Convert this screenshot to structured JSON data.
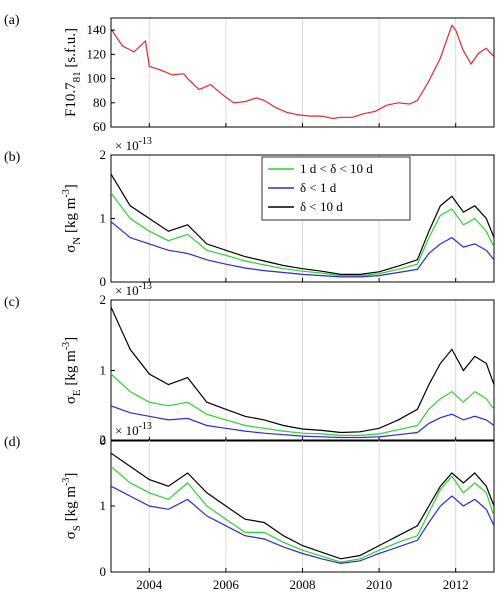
{
  "chart_data": [
    {
      "type": "line",
      "panel_label": "(a)",
      "ylabel_main": "F10.7",
      "ylabel_sub": "81",
      "ylabel_unit": " [s.f.u.]",
      "ylim": [
        60,
        150
      ],
      "yticks": [
        60,
        80,
        100,
        120,
        140
      ],
      "xlim": [
        2003.0,
        2013.0
      ],
      "series": [
        {
          "color": "#e8262b",
          "x": [
            2003.0,
            2003.3,
            2003.6,
            2003.9,
            2004.0,
            2004.3,
            2004.6,
            2004.9,
            2005.0,
            2005.3,
            2005.6,
            2005.9,
            2006.2,
            2006.5,
            2006.8,
            2007.0,
            2007.3,
            2007.6,
            2007.9,
            2008.2,
            2008.5,
            2008.8,
            2009.0,
            2009.3,
            2009.6,
            2009.9,
            2010.2,
            2010.5,
            2010.8,
            2011.0,
            2011.3,
            2011.6,
            2011.9,
            2012.0,
            2012.2,
            2012.4,
            2012.6,
            2012.8,
            2013.0
          ],
          "y": [
            141,
            127,
            122,
            131,
            110,
            107,
            103,
            104,
            100,
            91,
            95,
            87,
            80,
            81,
            84,
            82,
            76,
            72,
            70,
            69,
            69,
            67,
            68,
            68,
            71,
            73,
            78,
            80,
            79,
            82,
            98,
            117,
            144,
            140,
            123,
            112,
            121,
            125,
            118
          ]
        }
      ]
    },
    {
      "type": "line",
      "panel_label": "(b)",
      "ylabel_main": "σ",
      "ylabel_sub": "N",
      "ylabel_unit": " [kg m",
      "ylabel_sup": "-3",
      "ylabel_end": "]",
      "exponent": "× 10",
      "exponent_sup": "-13",
      "ylim": [
        0,
        2
      ],
      "yticks": [
        0,
        1,
        2
      ],
      "xlim": [
        2003.0,
        2013.0
      ],
      "legend": {
        "position": "top-right",
        "entries": [
          {
            "label": "1 d < δ < 10 d",
            "color": "#2ed12e"
          },
          {
            "label": "δ < 1 d",
            "color": "#2b2bd6"
          },
          {
            "label": "δ < 10 d",
            "color": "#000000"
          }
        ]
      },
      "series": [
        {
          "color": "#000000",
          "x": [
            2003.0,
            2003.5,
            2004.0,
            2004.5,
            2005.0,
            2005.5,
            2006.0,
            2006.5,
            2007.0,
            2007.5,
            2008.0,
            2008.5,
            2009.0,
            2009.5,
            2010.0,
            2010.5,
            2011.0,
            2011.3,
            2011.6,
            2011.9,
            2012.2,
            2012.5,
            2012.8,
            2013.0
          ],
          "y": [
            1.7,
            1.2,
            1.0,
            0.8,
            0.9,
            0.6,
            0.5,
            0.4,
            0.33,
            0.26,
            0.21,
            0.17,
            0.12,
            0.12,
            0.16,
            0.25,
            0.35,
            0.8,
            1.2,
            1.35,
            1.1,
            1.2,
            1.0,
            0.7
          ]
        },
        {
          "color": "#2ed12e",
          "x": [
            2003.0,
            2003.5,
            2004.0,
            2004.5,
            2005.0,
            2005.5,
            2006.0,
            2006.5,
            2007.0,
            2007.5,
            2008.0,
            2008.5,
            2009.0,
            2009.5,
            2010.0,
            2010.5,
            2011.0,
            2011.3,
            2011.6,
            2011.9,
            2012.2,
            2012.5,
            2012.8,
            2013.0
          ],
          "y": [
            1.4,
            1.0,
            0.8,
            0.65,
            0.75,
            0.5,
            0.42,
            0.33,
            0.27,
            0.21,
            0.17,
            0.14,
            0.1,
            0.1,
            0.13,
            0.2,
            0.28,
            0.7,
            1.05,
            1.15,
            0.9,
            1.0,
            0.8,
            0.55
          ]
        },
        {
          "color": "#2b2bd6",
          "x": [
            2003.0,
            2003.5,
            2004.0,
            2004.5,
            2005.0,
            2005.5,
            2006.0,
            2006.5,
            2007.0,
            2007.5,
            2008.0,
            2008.5,
            2009.0,
            2009.5,
            2010.0,
            2010.5,
            2011.0,
            2011.3,
            2011.6,
            2011.9,
            2012.2,
            2012.5,
            2012.8,
            2013.0
          ],
          "y": [
            0.95,
            0.7,
            0.6,
            0.5,
            0.45,
            0.35,
            0.28,
            0.22,
            0.18,
            0.15,
            0.12,
            0.1,
            0.08,
            0.08,
            0.1,
            0.15,
            0.2,
            0.45,
            0.6,
            0.7,
            0.55,
            0.6,
            0.5,
            0.35
          ]
        }
      ]
    },
    {
      "type": "line",
      "panel_label": "(c)",
      "ylabel_main": "σ",
      "ylabel_sub": "E",
      "ylabel_unit": " [kg m",
      "ylabel_sup": "-3",
      "ylabel_end": "]",
      "exponent": "× 10",
      "exponent_sup": "-13",
      "ylim": [
        0,
        2
      ],
      "yticks": [
        0,
        1,
        2
      ],
      "xlim": [
        2003.0,
        2013.0
      ],
      "series": [
        {
          "color": "#000000",
          "x": [
            2003.0,
            2003.5,
            2004.0,
            2004.5,
            2005.0,
            2005.5,
            2006.0,
            2006.5,
            2007.0,
            2007.5,
            2008.0,
            2008.5,
            2009.0,
            2009.5,
            2010.0,
            2010.5,
            2011.0,
            2011.3,
            2011.6,
            2011.9,
            2012.2,
            2012.5,
            2012.8,
            2013.0
          ],
          "y": [
            1.9,
            1.3,
            0.95,
            0.8,
            0.9,
            0.55,
            0.45,
            0.35,
            0.3,
            0.22,
            0.17,
            0.15,
            0.12,
            0.13,
            0.18,
            0.3,
            0.45,
            0.8,
            1.1,
            1.3,
            1.0,
            1.2,
            1.1,
            0.8
          ]
        },
        {
          "color": "#2ed12e",
          "x": [
            2003.0,
            2003.5,
            2004.0,
            2004.5,
            2005.0,
            2005.5,
            2006.0,
            2006.5,
            2007.0,
            2007.5,
            2008.0,
            2008.5,
            2009.0,
            2009.5,
            2010.0,
            2010.5,
            2011.0,
            2011.3,
            2011.6,
            2011.9,
            2012.2,
            2012.5,
            2012.8,
            2013.0
          ],
          "y": [
            0.95,
            0.7,
            0.55,
            0.5,
            0.55,
            0.38,
            0.3,
            0.22,
            0.18,
            0.14,
            0.11,
            0.1,
            0.08,
            0.08,
            0.1,
            0.16,
            0.22,
            0.45,
            0.6,
            0.7,
            0.55,
            0.7,
            0.6,
            0.45
          ]
        },
        {
          "color": "#2b2bd6",
          "x": [
            2003.0,
            2003.5,
            2004.0,
            2004.5,
            2005.0,
            2005.5,
            2006.0,
            2006.5,
            2007.0,
            2007.5,
            2008.0,
            2008.5,
            2009.0,
            2009.5,
            2010.0,
            2010.5,
            2011.0,
            2011.3,
            2011.6,
            2011.9,
            2012.2,
            2012.5,
            2012.8,
            2013.0
          ],
          "y": [
            0.5,
            0.4,
            0.35,
            0.3,
            0.32,
            0.22,
            0.18,
            0.14,
            0.11,
            0.09,
            0.07,
            0.06,
            0.05,
            0.05,
            0.06,
            0.09,
            0.12,
            0.25,
            0.33,
            0.38,
            0.3,
            0.35,
            0.3,
            0.22
          ]
        }
      ]
    },
    {
      "type": "line",
      "panel_label": "(d)",
      "ylabel_main": "σ",
      "ylabel_sub": "S",
      "ylabel_unit": " [kg m",
      "ylabel_sup": "-3",
      "ylabel_end": "]",
      "exponent": "× 10",
      "exponent_sup": "-13",
      "ylim": [
        0,
        2
      ],
      "yticks": [
        0,
        1,
        2
      ],
      "xlim": [
        2003.0,
        2013.0
      ],
      "xticks": [
        2004,
        2006,
        2008,
        2010,
        2012
      ],
      "series": [
        {
          "color": "#000000",
          "x": [
            2003.0,
            2003.5,
            2004.0,
            2004.5,
            2005.0,
            2005.5,
            2006.0,
            2006.5,
            2007.0,
            2007.5,
            2008.0,
            2008.5,
            2009.0,
            2009.5,
            2010.0,
            2010.5,
            2011.0,
            2011.3,
            2011.6,
            2011.9,
            2012.2,
            2012.5,
            2012.8,
            2013.0
          ],
          "y": [
            1.8,
            1.6,
            1.4,
            1.3,
            1.5,
            1.2,
            1.0,
            0.8,
            0.75,
            0.55,
            0.4,
            0.3,
            0.2,
            0.25,
            0.4,
            0.55,
            0.7,
            1.0,
            1.3,
            1.5,
            1.35,
            1.5,
            1.3,
            1.0
          ]
        },
        {
          "color": "#2ed12e",
          "x": [
            2003.0,
            2003.5,
            2004.0,
            2004.5,
            2005.0,
            2005.5,
            2006.0,
            2006.5,
            2007.0,
            2007.5,
            2008.0,
            2008.5,
            2009.0,
            2009.5,
            2010.0,
            2010.5,
            2011.0,
            2011.3,
            2011.6,
            2011.9,
            2012.2,
            2012.5,
            2012.8,
            2013.0
          ],
          "y": [
            1.6,
            1.35,
            1.2,
            1.1,
            1.35,
            1.0,
            0.8,
            0.6,
            0.6,
            0.45,
            0.33,
            0.24,
            0.15,
            0.2,
            0.33,
            0.45,
            0.55,
            0.9,
            1.25,
            1.45,
            1.2,
            1.35,
            1.2,
            0.85
          ]
        },
        {
          "color": "#2b2bd6",
          "x": [
            2003.0,
            2003.5,
            2004.0,
            2004.5,
            2005.0,
            2005.5,
            2006.0,
            2006.5,
            2007.0,
            2007.5,
            2008.0,
            2008.5,
            2009.0,
            2009.5,
            2010.0,
            2010.5,
            2011.0,
            2011.3,
            2011.6,
            2011.9,
            2012.2,
            2012.5,
            2012.8,
            2013.0
          ],
          "y": [
            1.3,
            1.15,
            1.0,
            0.95,
            1.1,
            0.85,
            0.7,
            0.55,
            0.5,
            0.38,
            0.28,
            0.2,
            0.13,
            0.17,
            0.28,
            0.38,
            0.48,
            0.75,
            1.0,
            1.15,
            1.0,
            1.1,
            0.95,
            0.7
          ]
        }
      ]
    }
  ]
}
